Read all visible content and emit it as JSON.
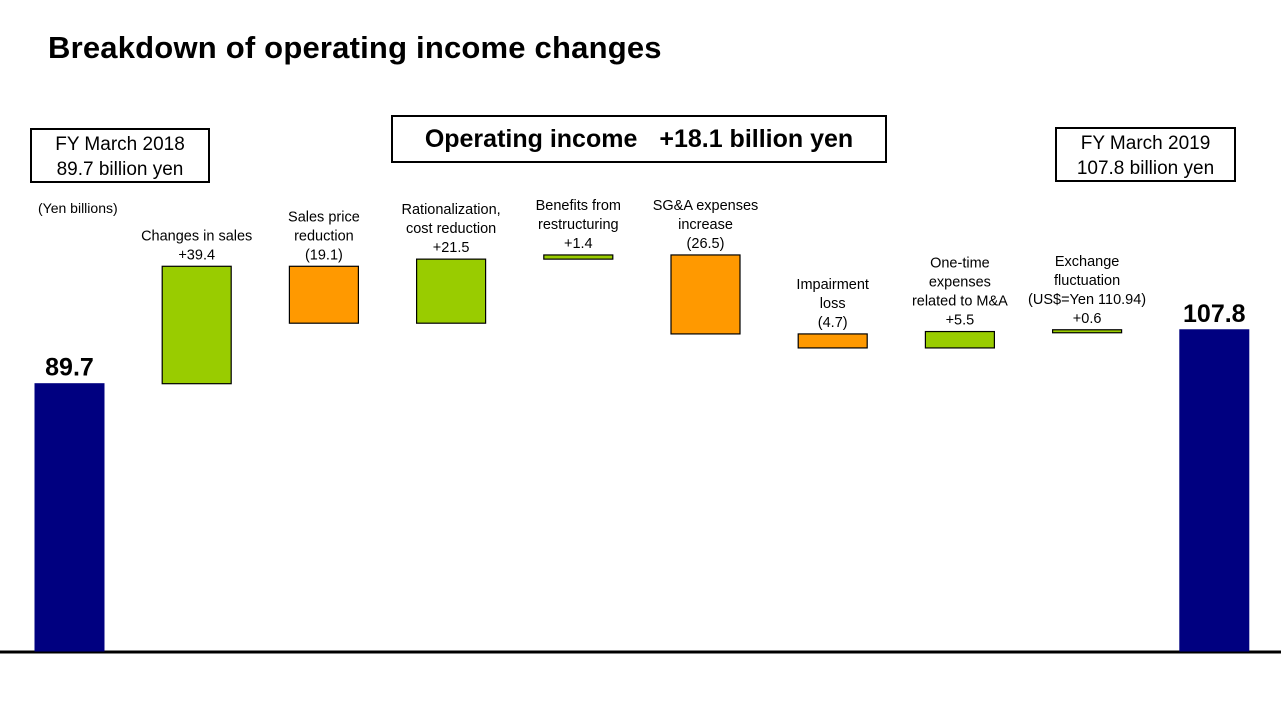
{
  "title": "Breakdown of operating income changes",
  "start_box": {
    "line1": "FY March 2018",
    "line2": "89.7 billion  yen"
  },
  "end_box": {
    "line1": "FY March 2019",
    "line2": "107.8 billion  yen"
  },
  "summary": {
    "label": "Operating income",
    "value": "+18.1 billion yen"
  },
  "unit_note": "(Yen billions)",
  "colors": {
    "total": "#000080",
    "increase": "#99cc00",
    "decrease": "#ff9900",
    "outline": "#000000"
  },
  "chart_data": {
    "type": "bar",
    "subtype": "waterfall",
    "unit": "Yen billions",
    "ylim": [
      0,
      120
    ],
    "grid": false,
    "legend": "none",
    "steps": [
      {
        "kind": "total",
        "value": 89.7,
        "label_lines": [
          "89.7"
        ]
      },
      {
        "kind": "delta",
        "value": 39.4,
        "label_lines": [
          "Changes in sales",
          "+39.4"
        ]
      },
      {
        "kind": "delta",
        "value": -19.1,
        "label_lines": [
          "Sales price",
          "reduction",
          "(19.1)"
        ]
      },
      {
        "kind": "delta",
        "value": 21.5,
        "label_lines": [
          "Rationalization,",
          "cost reduction",
          "+21.5"
        ]
      },
      {
        "kind": "delta",
        "value": 1.4,
        "label_lines": [
          "Benefits from",
          "restructuring",
          "+1.4"
        ]
      },
      {
        "kind": "delta",
        "value": -26.5,
        "label_lines": [
          "SG&A expenses",
          "increase",
          "(26.5)"
        ]
      },
      {
        "kind": "delta",
        "value": -4.7,
        "label_lines": [
          "Impairment",
          "loss",
          "(4.7)"
        ]
      },
      {
        "kind": "delta",
        "value": 5.5,
        "label_lines": [
          "One-time",
          "expenses",
          "related to M&A",
          "+5.5"
        ]
      },
      {
        "kind": "delta",
        "value": 0.6,
        "label_lines": [
          "Exchange",
          "fluctuation",
          "(US$=Yen 110.94)",
          "+0.6"
        ]
      },
      {
        "kind": "total",
        "value": 107.8,
        "label_lines": [
          "107.8"
        ]
      }
    ]
  }
}
